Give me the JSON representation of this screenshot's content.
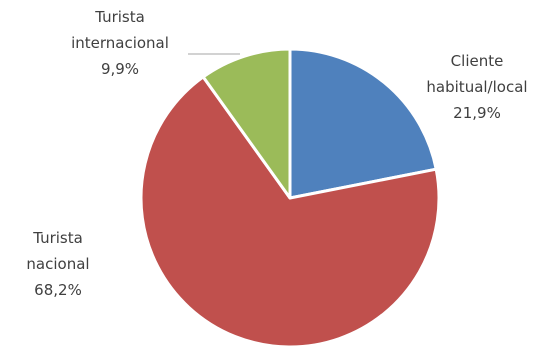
{
  "chart_data": {
    "type": "pie",
    "title": "",
    "start_angle_deg": 0,
    "direction": "clockwise",
    "slices": [
      {
        "label_lines": [
          "Cliente",
          "habitual/local"
        ],
        "value": 21.9,
        "value_label": "21,9%",
        "color": "#4F81BD"
      },
      {
        "label_lines": [
          "Turista",
          "nacional"
        ],
        "value": 68.2,
        "value_label": "68,2%",
        "color": "#C0504D"
      },
      {
        "label_lines": [
          "Turista",
          "internacional"
        ],
        "value": 9.9,
        "value_label": "9,9%",
        "color": "#9BBB59"
      }
    ],
    "legend": "none",
    "slice_border_color": "#ffffff"
  }
}
